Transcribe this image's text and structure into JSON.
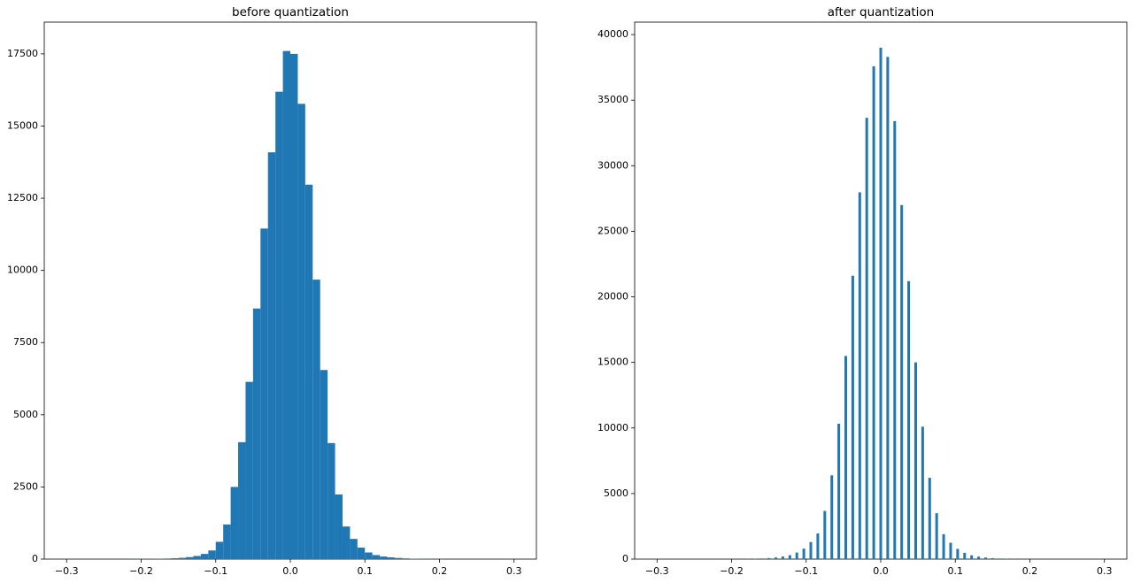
{
  "chart_data": [
    {
      "type": "histogram",
      "title": "before quantization",
      "color": "#1f77b4",
      "bins": [
        -0.3,
        -0.29,
        -0.28,
        -0.27,
        -0.26,
        -0.25,
        -0.24,
        -0.23,
        -0.22,
        -0.21,
        -0.2,
        -0.19,
        -0.18,
        -0.17,
        -0.16,
        -0.15,
        -0.14,
        -0.13,
        -0.12,
        -0.11,
        -0.1,
        -0.09,
        -0.08,
        -0.07,
        -0.06,
        -0.05,
        -0.04,
        -0.03,
        -0.02,
        -0.01,
        0,
        0.01,
        0.02,
        0.03,
        0.04,
        0.05,
        0.06,
        0.07,
        0.08,
        0.09,
        0.1,
        0.11,
        0.12,
        0.13,
        0.14,
        0.15,
        0.16,
        0.17,
        0.18,
        0.19,
        0.2,
        0.21,
        0.22,
        0.23,
        0.24,
        0.25,
        0.26,
        0.27,
        0.28,
        0.29,
        0.3
      ],
      "values": [
        1,
        0,
        0,
        0,
        1,
        0,
        1,
        1,
        2,
        3,
        5,
        8,
        12,
        20,
        30,
        45,
        70,
        110,
        180,
        300,
        600,
        1200,
        2500,
        4050,
        6140,
        8680,
        11450,
        14090,
        16190,
        17600,
        17500,
        15770,
        12970,
        9680,
        6550,
        4020,
        2240,
        1130,
        700,
        400,
        230,
        140,
        90,
        60,
        40,
        25,
        15,
        10,
        6,
        4,
        2,
        1,
        1,
        0,
        1,
        0,
        0,
        0,
        0,
        1
      ],
      "xlim": [
        -0.33,
        0.33
      ],
      "xticks": [
        {
          "value": -0.3,
          "label": "−0.3"
        },
        {
          "value": -0.2,
          "label": "−0.2"
        },
        {
          "value": -0.1,
          "label": "−0.1"
        },
        {
          "value": 0,
          "label": "0.0"
        },
        0.1,
        0.2,
        0.3
      ],
      "ylim": [
        0,
        18600
      ],
      "yticks": [
        0,
        2500,
        5000,
        7500,
        10000,
        12500,
        15000,
        17500
      ]
    },
    {
      "type": "bar",
      "title": "after quantization",
      "color": "#1f77b4",
      "x": [
        -0.178125,
        -0.16875,
        -0.159375,
        -0.15,
        -0.140625,
        -0.13125,
        -0.121875,
        -0.1125,
        -0.103125,
        -0.09375,
        -0.084375,
        -0.075,
        -0.065625,
        -0.05625,
        -0.046875,
        -0.0375,
        -0.028125,
        -0.01875,
        -0.009375,
        0,
        0.009375,
        0.01875,
        0.028125,
        0.0375,
        0.046875,
        0.05625,
        0.065625,
        0.075,
        0.084375,
        0.09375,
        0.103125,
        0.1125,
        0.121875,
        0.13125,
        0.140625,
        0.15,
        0.159375,
        0.16875,
        0.178125
      ],
      "values": [
        15,
        30,
        50,
        80,
        130,
        200,
        300,
        500,
        800,
        1300,
        1960,
        3670,
        6390,
        10320,
        15490,
        21610,
        27970,
        33650,
        37580,
        39000,
        38300,
        33400,
        27000,
        21200,
        15000,
        10100,
        6200,
        3500,
        1900,
        1250,
        780,
        480,
        290,
        190,
        120,
        75,
        45,
        25,
        12
      ],
      "xlim": [
        -0.33,
        0.33
      ],
      "xticks": [
        {
          "value": -0.3,
          "label": "−0.3"
        },
        {
          "value": -0.2,
          "label": "−0.2"
        },
        {
          "value": -0.1,
          "label": "−0.1"
        },
        {
          "value": 0,
          "label": "0.0"
        },
        0.1,
        0.2,
        0.3
      ],
      "ylim": [
        0,
        40950
      ],
      "yticks": [
        0,
        5000,
        10000,
        15000,
        20000,
        25000,
        30000,
        35000,
        40000
      ]
    }
  ]
}
